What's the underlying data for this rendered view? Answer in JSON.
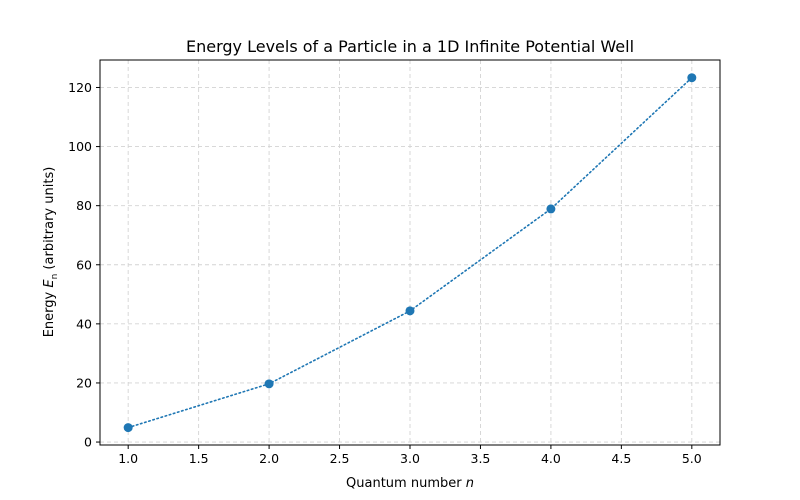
{
  "chart_data": {
    "type": "line",
    "title": "Energy Levels of a Particle in a 1D Infinite Potential Well",
    "xlabel_prefix": "Quantum number",
    "xlabel_var": "n",
    "ylabel_prefix": "Energy",
    "ylabel_var": "E",
    "ylabel_sub": "n",
    "ylabel_suffix": "(arbitrary units)",
    "x": [
      1.0,
      2.0,
      3.0,
      4.0,
      5.0
    ],
    "series": [
      {
        "values": [
          4.9,
          19.7,
          44.4,
          78.9,
          123.3
        ],
        "color": "#1f77b4"
      }
    ],
    "xlim": [
      0.8,
      5.2
    ],
    "ylim": [
      -1.0,
      129.3
    ],
    "xticks": [
      1.0,
      1.5,
      2.0,
      2.5,
      3.0,
      3.5,
      4.0,
      4.5,
      5.0
    ],
    "xtick_labels": [
      "1.0",
      "1.5",
      "2.0",
      "2.5",
      "3.0",
      "3.5",
      "4.0",
      "4.5",
      "5.0"
    ],
    "yticks": [
      0,
      20,
      40,
      60,
      80,
      100,
      120
    ],
    "ytick_labels": [
      "0",
      "20",
      "40",
      "60",
      "80",
      "100",
      "120"
    ],
    "grid": true,
    "line_style": "dotted",
    "marker": "circle"
  }
}
